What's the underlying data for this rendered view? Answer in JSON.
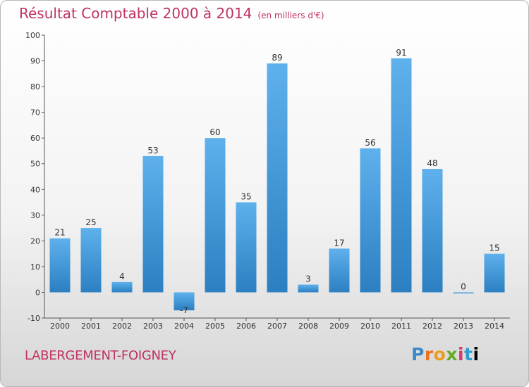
{
  "header": {
    "title": "Résultat Comptable 2000 à 2014",
    "unit": "(en milliers d'€)"
  },
  "footer": {
    "town": "LABERGEMENT-FOIGNEY",
    "logo_letters": [
      "P",
      "r",
      "o",
      "x",
      "i",
      "t",
      "i"
    ]
  },
  "colors": {
    "title": "#c0335f",
    "bar_top": "#5eb1ec",
    "bar_bottom": "#2c7fc1",
    "axis": "#555555"
  },
  "chart_data": {
    "type": "bar",
    "title": "Résultat Comptable 2000 à 2014",
    "xlabel": "",
    "ylabel": "",
    "ylim": [
      -10,
      100
    ],
    "yticks": [
      -10,
      0,
      10,
      20,
      30,
      40,
      50,
      60,
      70,
      80,
      90,
      100
    ],
    "grid": false,
    "categories": [
      "2000",
      "2001",
      "2002",
      "2003",
      "2004",
      "2005",
      "2006",
      "2007",
      "2008",
      "2009",
      "2010",
      "2011",
      "2012",
      "2013",
      "2014"
    ],
    "values": [
      21,
      25,
      4,
      53,
      -7,
      60,
      35,
      89,
      3,
      17,
      56,
      91,
      48,
      0,
      15
    ]
  }
}
